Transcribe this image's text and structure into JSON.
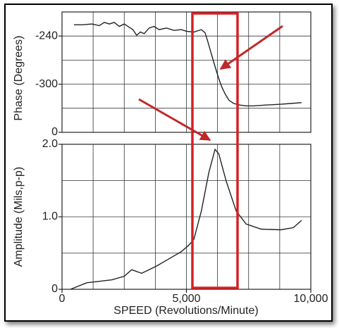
{
  "chart_data": [
    {
      "type": "line",
      "ylabel": "Phase (Degrees)",
      "xlim": [
        0,
        10000
      ],
      "xgrid": [
        1250,
        2500,
        3750,
        5000,
        6250,
        7500,
        8750
      ],
      "ylim": [
        -360,
        -210
      ],
      "yticks": [
        {
          "value": -360,
          "label": "0"
        },
        -300,
        -240
      ],
      "ygrid": [
        -330,
        -300,
        -270,
        -240
      ],
      "x": [
        480,
        800,
        1200,
        1500,
        1700,
        1900,
        2100,
        2300,
        2500,
        2700,
        2850,
        3000,
        3150,
        3300,
        3500,
        3700,
        3900,
        4200,
        4500,
        4800,
        5000,
        5300,
        5600,
        5750,
        5860,
        6000,
        6150,
        6300,
        6430,
        6570,
        6710,
        6900,
        7140,
        7400,
        7700,
        8200,
        8800,
        9200,
        9630
      ],
      "series": [
        {
          "color": "#222222",
          "values": [
            -226,
            -226,
            -225,
            -227,
            -223,
            -225,
            -223,
            -228,
            -225,
            -229,
            -232,
            -239,
            -235,
            -237,
            -230,
            -228,
            -232,
            -230,
            -233,
            -232,
            -234,
            -235,
            -232,
            -236,
            -247,
            -262,
            -278,
            -293,
            -304,
            -313,
            -320,
            -324,
            -326,
            -327,
            -327,
            -326,
            -325,
            -324,
            -323
          ]
        }
      ]
    },
    {
      "type": "line",
      "ylabel": "Amplitude (Mils,p-p)",
      "xlabel": "SPEED (Revolutions/Minute)",
      "xlim": [
        0,
        10000
      ],
      "xticks": [
        0,
        {
          "value": 5000,
          "label": "5,000"
        },
        {
          "value": 10000,
          "label": "10,000"
        }
      ],
      "xgrid": [
        1250,
        2500,
        3750,
        5000,
        6250,
        7500,
        8750
      ],
      "ylim": [
        0,
        2
      ],
      "yticks": [
        0,
        {
          "value": 1,
          "label": "1.0"
        },
        {
          "value": 2,
          "label": "2.0"
        }
      ],
      "ygrid": [
        0.5,
        1,
        1.5
      ],
      "x": [
        340,
        1000,
        2000,
        2500,
        2800,
        3200,
        3800,
        4300,
        4800,
        5100,
        5300,
        5600,
        5900,
        6150,
        6300,
        6600,
        7000,
        7400,
        8000,
        8800,
        9300,
        9630
      ],
      "series": [
        {
          "color": "#222222",
          "values": [
            0,
            0.09,
            0.13,
            0.18,
            0.27,
            0.22,
            0.32,
            0.42,
            0.52,
            0.61,
            0.69,
            1.08,
            1.61,
            1.93,
            1.87,
            1.49,
            1.08,
            0.9,
            0.83,
            0.82,
            0.85,
            0.95
          ]
        }
      ]
    }
  ]
}
